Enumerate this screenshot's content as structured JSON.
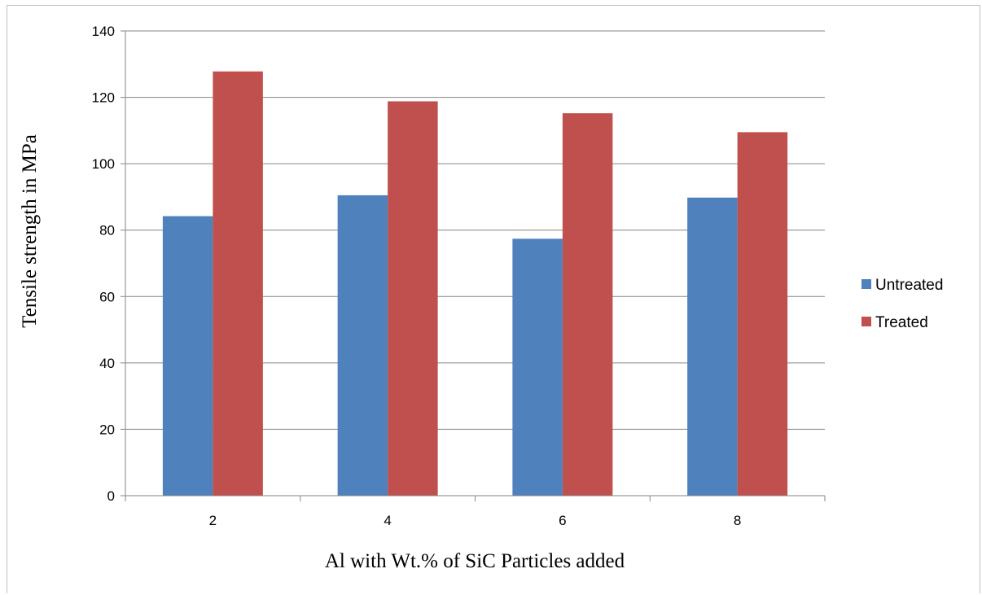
{
  "chart_data": {
    "type": "bar",
    "title": "",
    "xlabel": "Al with Wt.% of SiC Particles added",
    "ylabel": "Tensile strength in MPa",
    "categories": [
      "2",
      "4",
      "6",
      "8"
    ],
    "series": [
      {
        "name": "Untreated",
        "color": "#4f81bd",
        "values": [
          84.2,
          90.5,
          77.4,
          89.8
        ]
      },
      {
        "name": "Treated",
        "color": "#c0504d",
        "values": [
          127.8,
          118.8,
          115.2,
          109.5
        ]
      }
    ],
    "ylim": [
      0,
      140
    ],
    "yticks": [
      "0",
      "20",
      "40",
      "60",
      "80",
      "100",
      "120",
      "140"
    ],
    "grid": true,
    "legend_position": "right"
  }
}
